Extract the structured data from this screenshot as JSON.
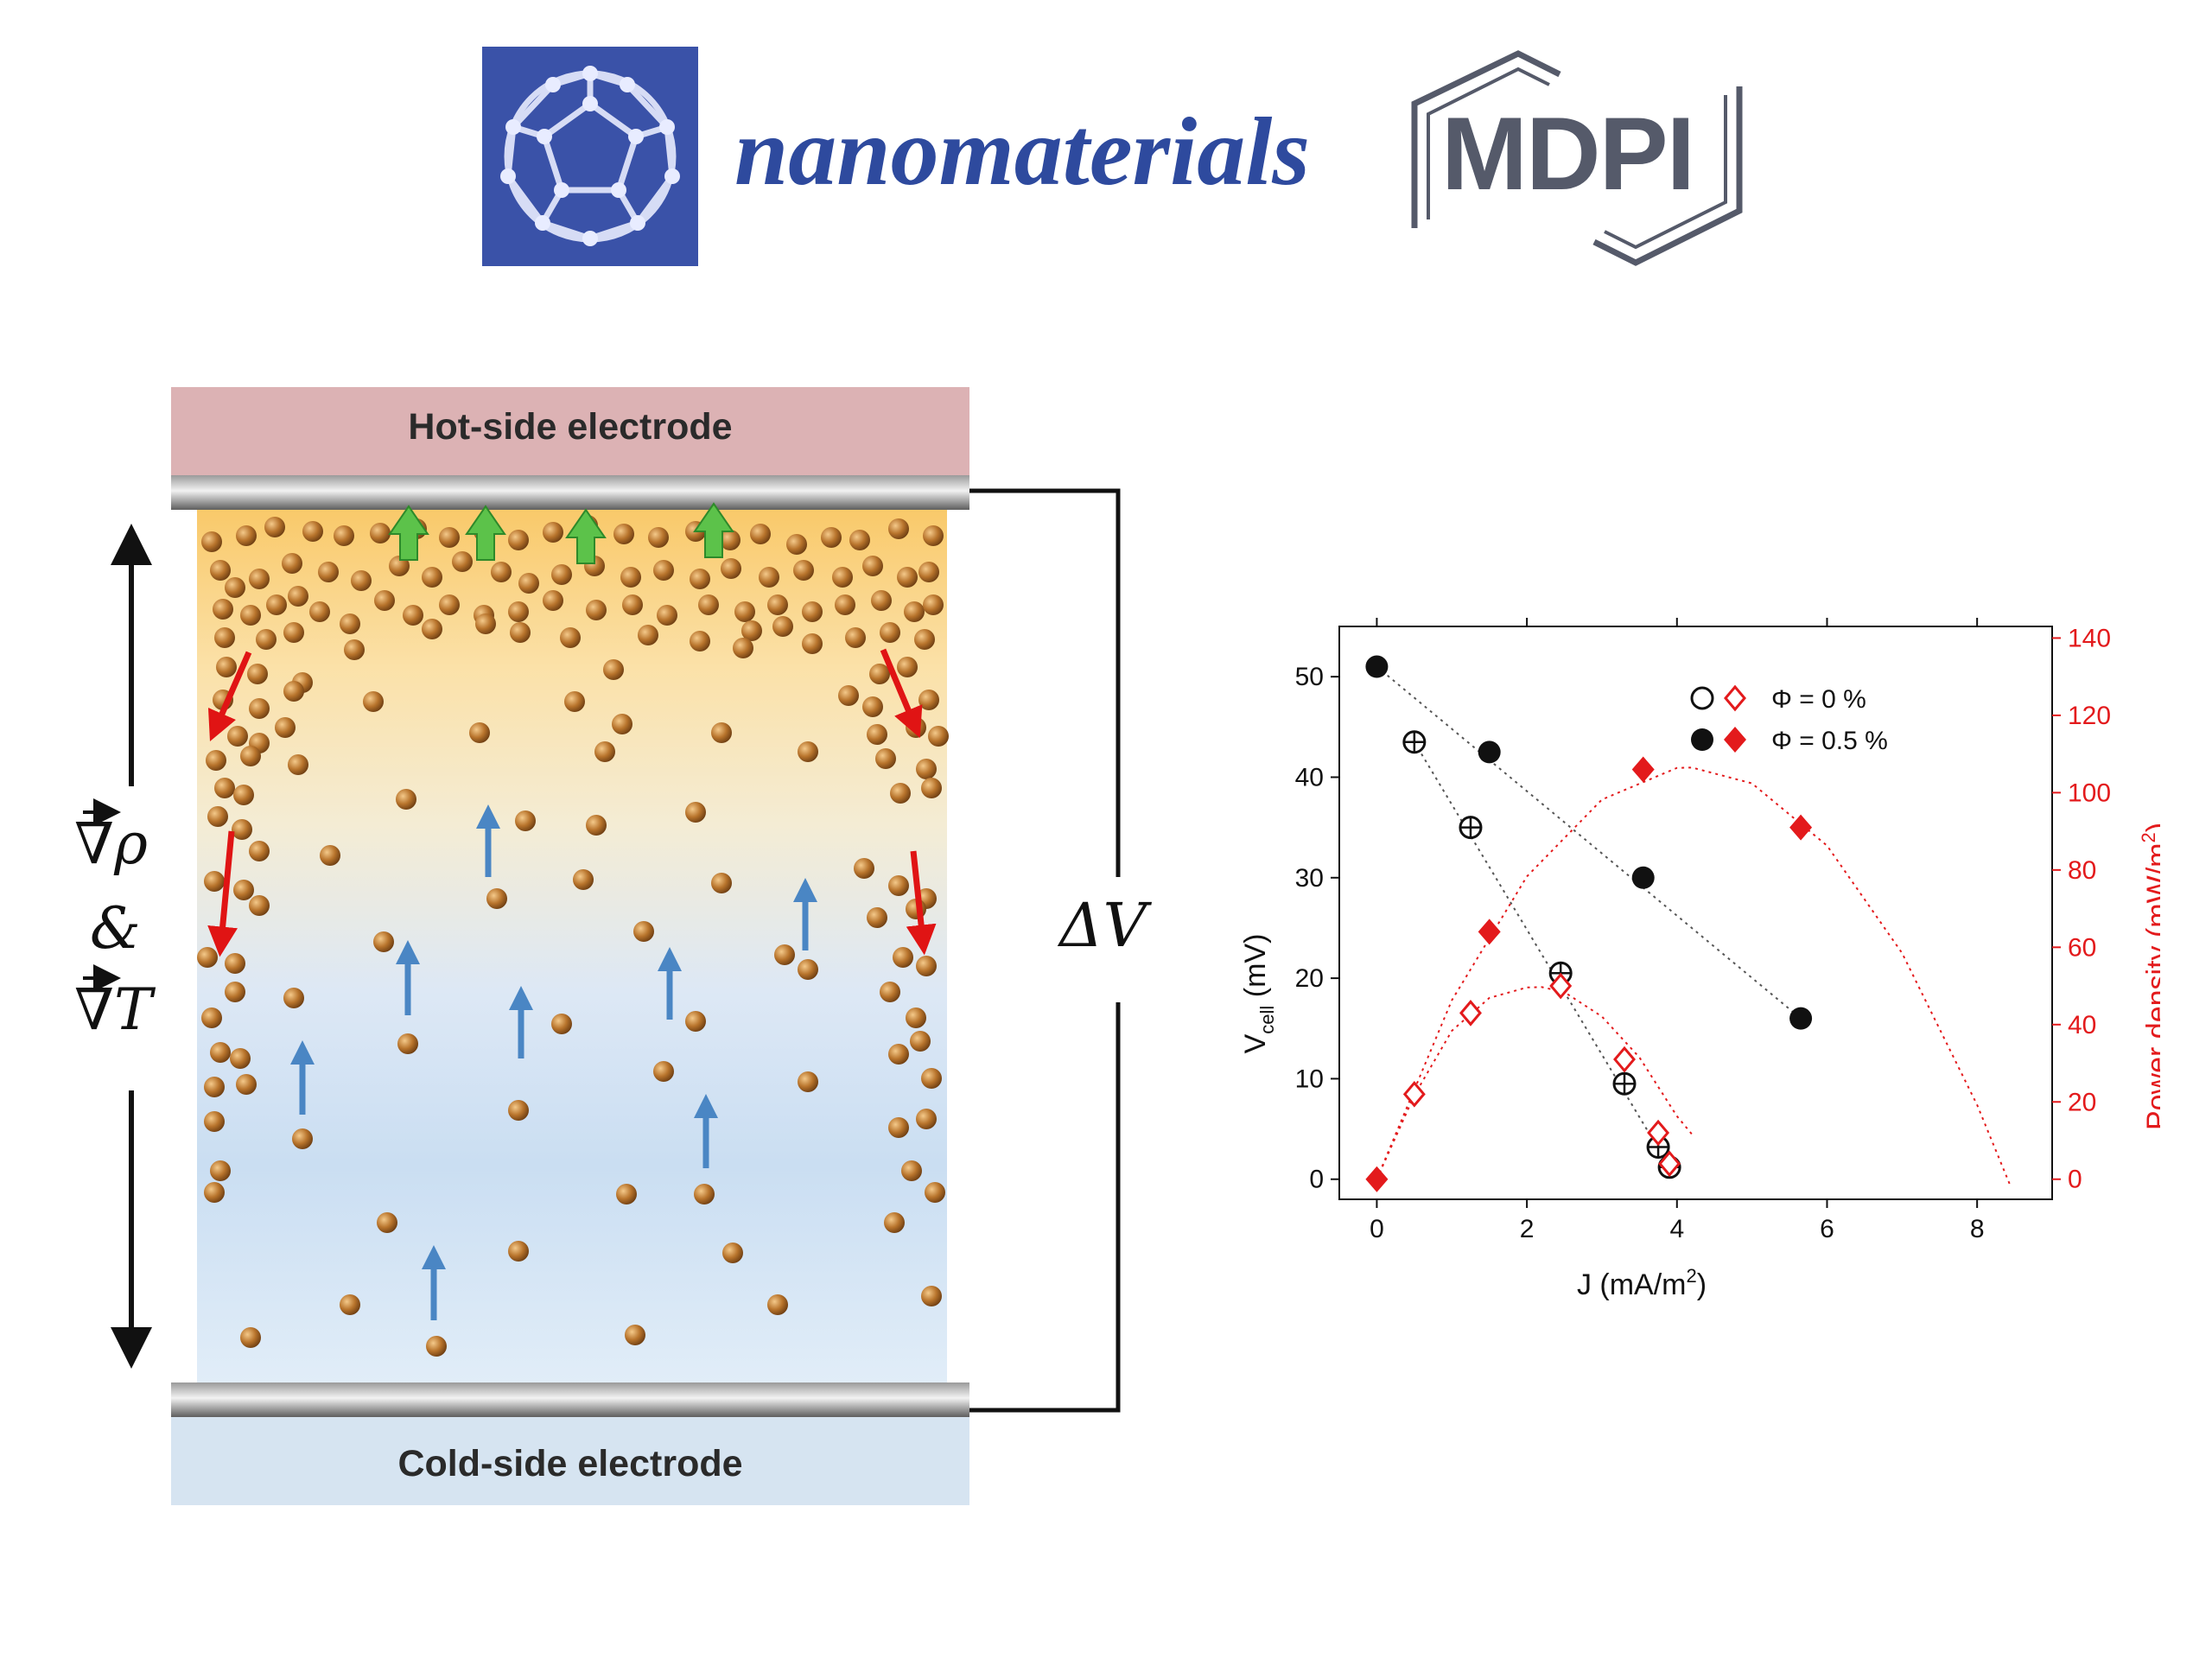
{
  "header": {
    "journal_name": "nanomaterials",
    "publisher": "MDPI",
    "journal_icon": "fullerene-icon"
  },
  "diagram": {
    "hot_label": "Hot-side electrode",
    "cold_label": "Cold-side electrode",
    "voltage_label": "ΔV",
    "gradient_rho": "∇ρ",
    "ampersand": "&",
    "gradient_t": "∇T",
    "colors": {
      "hot_electrode": "#dcb2b4",
      "cold_electrode": "#d6e4f1",
      "particle": "#b8742c",
      "green_arrow": "#5cc24a",
      "red_arrow": "#e01414",
      "blue_arrow": "#4a86c4"
    }
  },
  "chart_data": {
    "type": "scatter",
    "xlabel_main": "J (mA/m",
    "xlabel_sup": "2",
    "xlabel_end": ")",
    "ylabel_left_main": "V",
    "ylabel_left_sub": "cell",
    "ylabel_left_end": " (mV)",
    "ylabel_right_main": "Power density (mW/m",
    "ylabel_right_sup": "2",
    "ylabel_right_end": ")",
    "xlim": [
      -0.5,
      9
    ],
    "ylim_left": [
      -2,
      55
    ],
    "ylim_right": [
      -5.2,
      143
    ],
    "xticks": [
      "0",
      "2",
      "4",
      "6",
      "8"
    ],
    "yticks_left": [
      "0",
      "10",
      "20",
      "30",
      "40",
      "50"
    ],
    "yticks_right": [
      "0",
      "20",
      "40",
      "60",
      "80",
      "100",
      "120",
      "140"
    ],
    "legend_position": "top-right",
    "legend": [
      {
        "label": "Φ = 0 %",
        "filled": false
      },
      {
        "label": "Φ = 0.5 %",
        "filled": true
      }
    ],
    "series": [
      {
        "axis": "left",
        "phi": "0",
        "marker": "circle-plus",
        "color": "#111111",
        "x": [
          0.5,
          1.25,
          2.45,
          3.3,
          3.75,
          3.9
        ],
        "y": [
          43.5,
          35,
          20.5,
          9.5,
          3.2,
          1.2
        ]
      },
      {
        "axis": "left",
        "phi": "0.5",
        "marker": "filled-circle",
        "color": "#111111",
        "x": [
          0,
          1.5,
          3.55,
          5.65
        ],
        "y": [
          51,
          42.5,
          30,
          16
        ]
      },
      {
        "axis": "right",
        "phi": "0",
        "marker": "open-diamond",
        "color": "#e31a1c",
        "x": [
          0.5,
          1.25,
          2.45,
          3.3,
          3.75,
          3.9
        ],
        "y": [
          22,
          43,
          50,
          31,
          12,
          4
        ]
      },
      {
        "axis": "right",
        "phi": "0.5",
        "marker": "filled-diamond",
        "color": "#e31a1c",
        "x": [
          0,
          1.5,
          3.55,
          5.65
        ],
        "y": [
          0,
          64,
          106,
          91
        ]
      }
    ],
    "fit_lines": [
      {
        "axis": "left",
        "phi": "0",
        "color": "#555555",
        "x": [
          0.5,
          3.9
        ],
        "y": [
          43.5,
          1.2
        ]
      },
      {
        "axis": "left",
        "phi": "0.5",
        "color": "#555555",
        "x": [
          0,
          5.65
        ],
        "y": [
          51,
          16
        ]
      }
    ],
    "fit_curves": [
      {
        "axis": "right",
        "phi": "0",
        "color": "#e31a1c",
        "x": [
          0,
          0.5,
          1,
          1.5,
          2,
          2.2,
          2.5,
          3,
          3.5,
          4,
          4.2
        ],
        "y": [
          0,
          21.7,
          38.4,
          46.9,
          49.6,
          49.7,
          48.4,
          42.1,
          31.5,
          16.3,
          11.6
        ]
      },
      {
        "axis": "right",
        "phi": "0.5",
        "color": "#e31a1c",
        "x": [
          0,
          1,
          2,
          3,
          4,
          4.2,
          5,
          6,
          7,
          8,
          8.45
        ],
        "y": [
          0,
          46.3,
          78.3,
          98.2,
          106.4,
          106.5,
          102.4,
          86.3,
          58.5,
          19.2,
          -2
        ]
      }
    ]
  }
}
